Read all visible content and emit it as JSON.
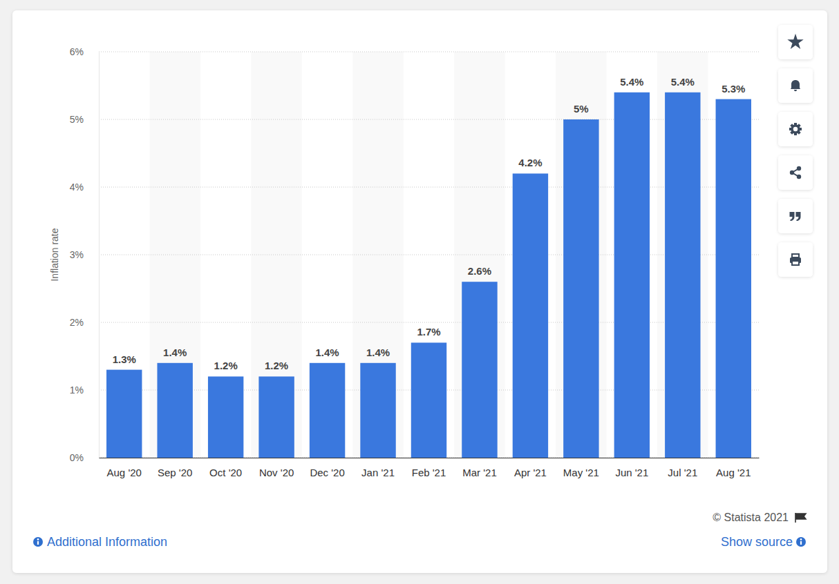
{
  "chart_data": {
    "type": "bar",
    "y_label": "Inflation rate",
    "categories": [
      "Aug '20",
      "Sep '20",
      "Oct '20",
      "Nov '20",
      "Dec '20",
      "Jan '21",
      "Feb '21",
      "Mar '21",
      "Apr '21",
      "May '21",
      "Jun '21",
      "Jul '21",
      "Aug '21"
    ],
    "values": [
      1.3,
      1.4,
      1.2,
      1.2,
      1.4,
      1.4,
      1.7,
      2.6,
      4.2,
      5,
      5.4,
      5.4,
      5.3
    ],
    "value_labels": [
      "1.3%",
      "1.4%",
      "1.2%",
      "1.2%",
      "1.4%",
      "1.4%",
      "1.7%",
      "2.6%",
      "4.2%",
      "5%",
      "5.4%",
      "5.4%",
      "5.3%"
    ],
    "color": "#3a78de",
    "ylim": [
      0,
      6
    ],
    "yticks": [
      {
        "value": 0,
        "label": "0%"
      },
      {
        "value": 1,
        "label": "1%"
      },
      {
        "value": 2,
        "label": "2%"
      },
      {
        "value": 3,
        "label": "3%"
      },
      {
        "value": 4,
        "label": "4%"
      },
      {
        "value": 5,
        "label": "5%"
      },
      {
        "value": 6,
        "label": "6%"
      }
    ],
    "grid": true,
    "data_labels": true
  },
  "footer": {
    "credit": "© Statista 2021",
    "additional_info": "Additional Information",
    "show_source": "Show source"
  }
}
